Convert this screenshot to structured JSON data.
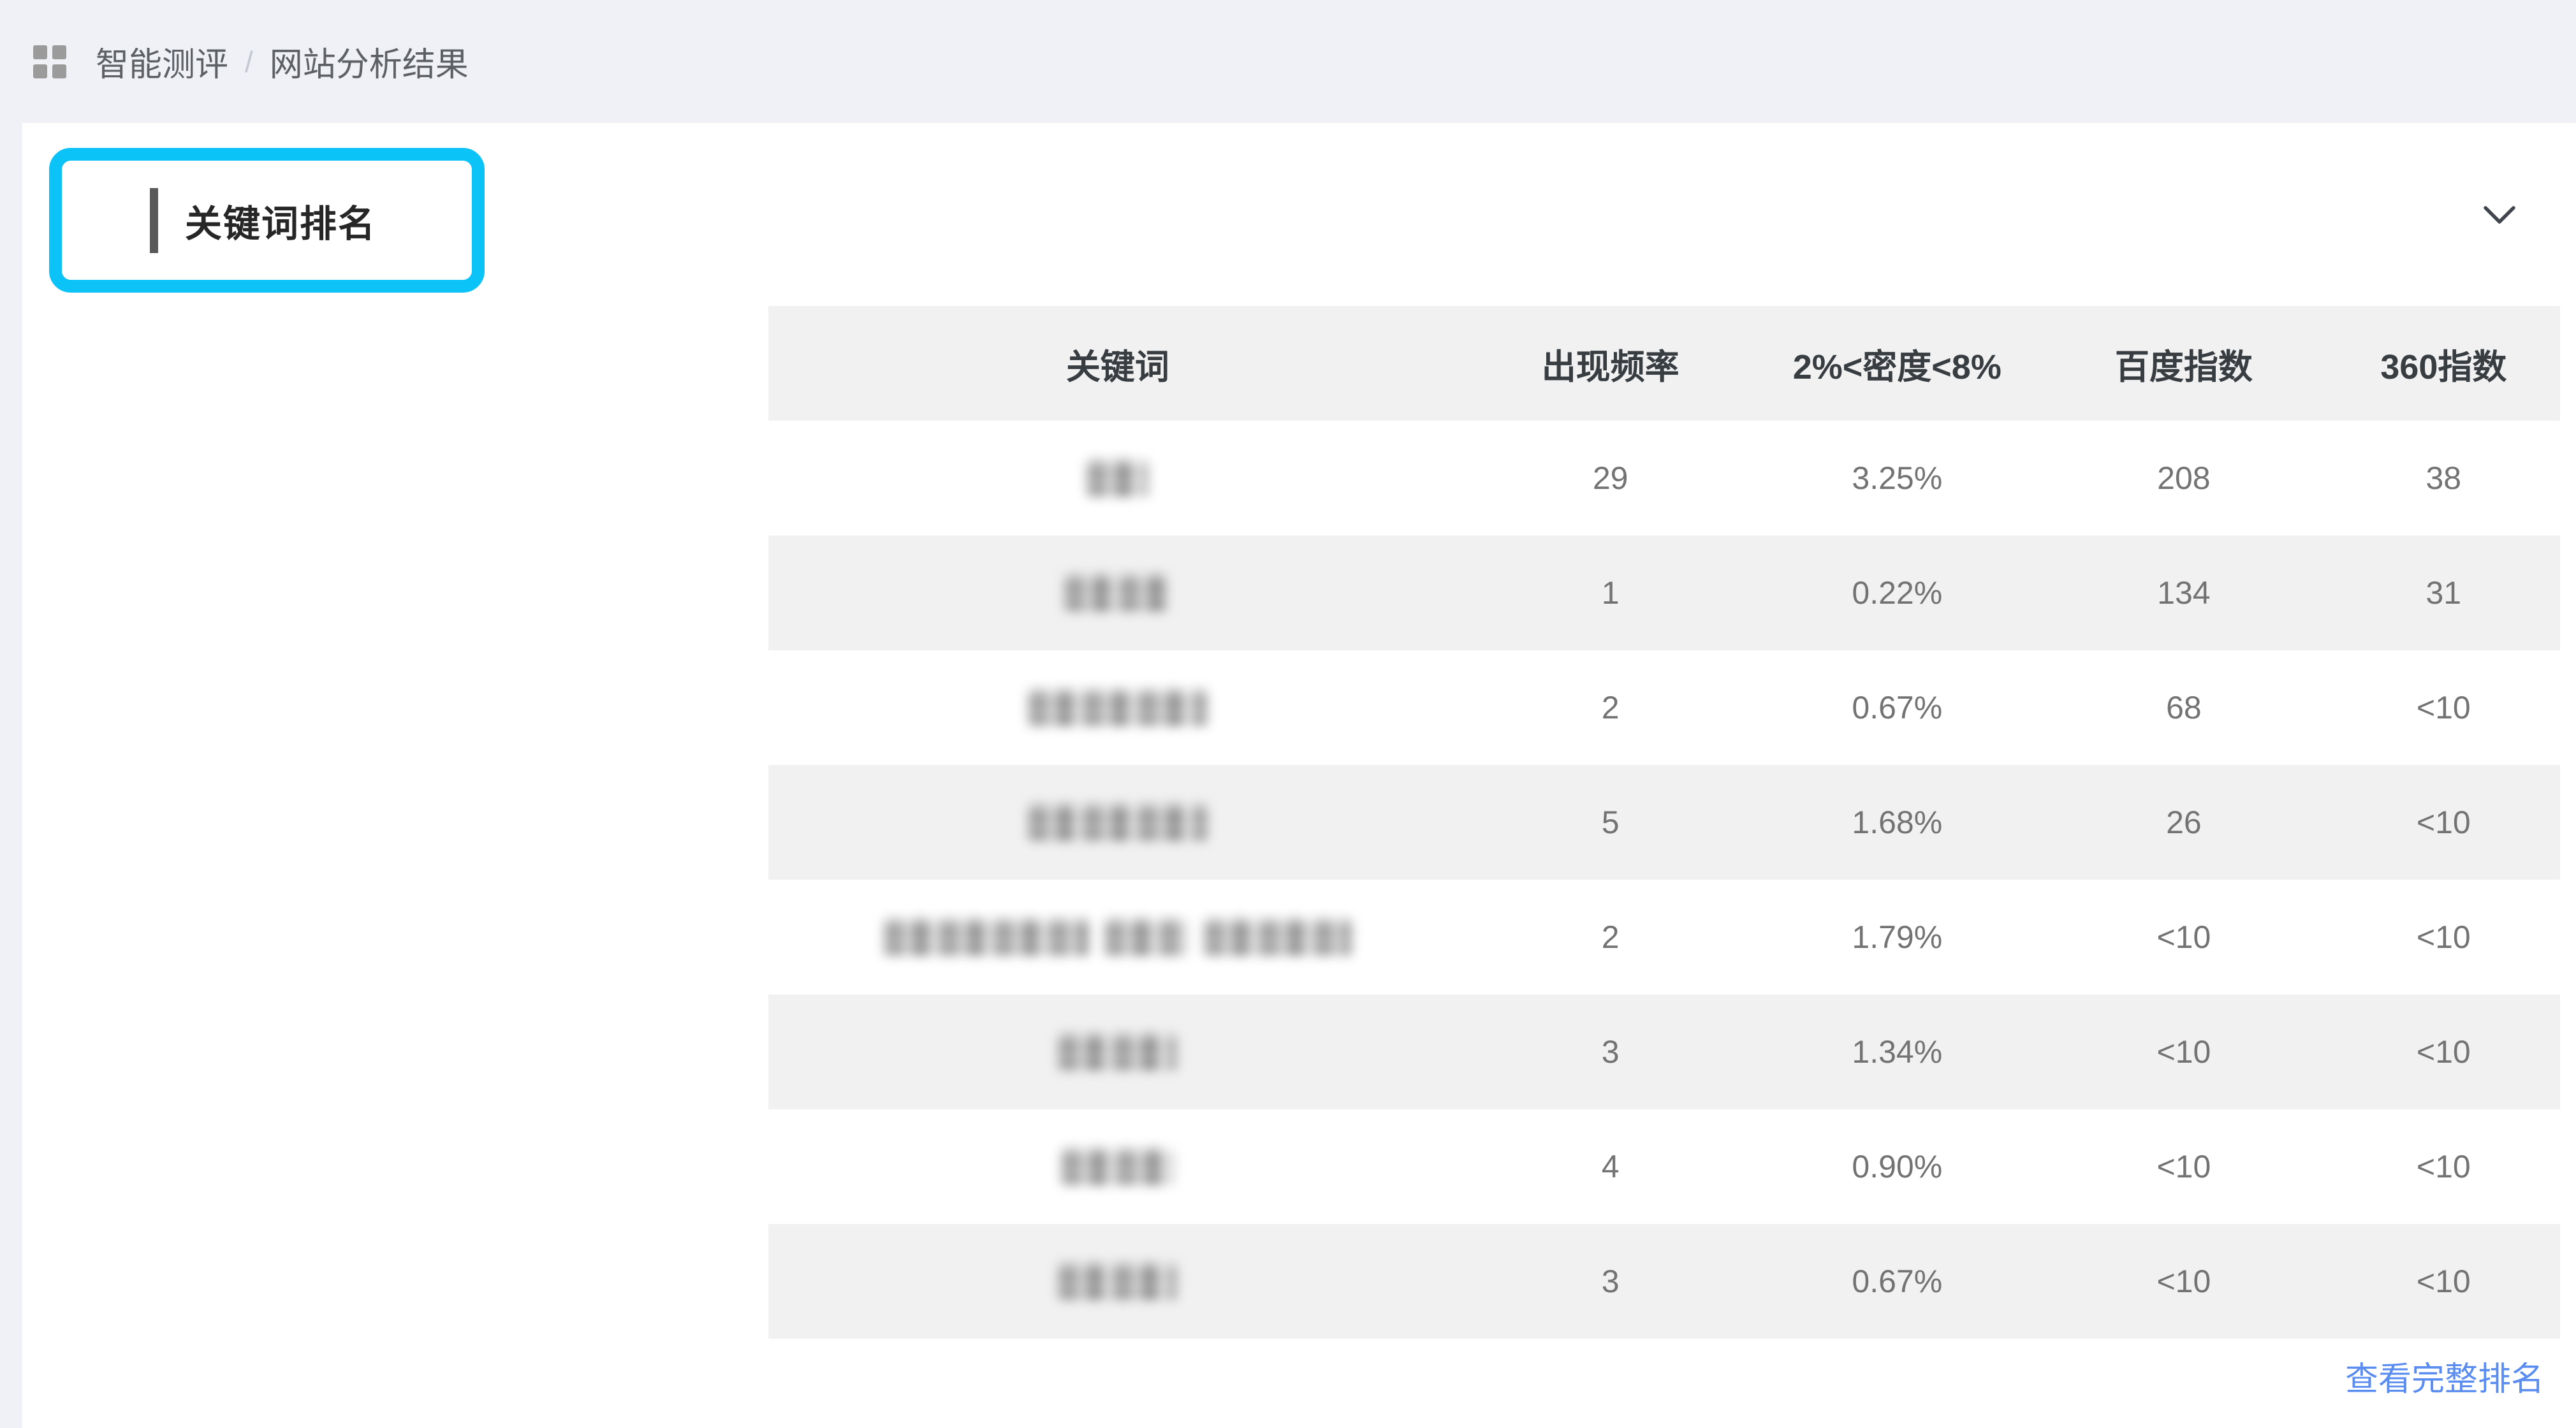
{
  "breadcrumb": {
    "items": [
      "智能测评",
      "网站分析结果"
    ],
    "separator": "/"
  },
  "section": {
    "title": "关键词排名",
    "highlight_color": "#0bc3f7"
  },
  "table": {
    "headers": [
      "关键词",
      "出现频率",
      "2%<密度<8%",
      "百度指数",
      "360指数"
    ],
    "rows": [
      {
        "keyword_redacted_segments": [
          95
        ],
        "frequency": "29",
        "density": "3.25%",
        "baidu_index": "208",
        "index_360": "38"
      },
      {
        "keyword_redacted_segments": [
          165
        ],
        "frequency": "1",
        "density": "0.22%",
        "baidu_index": "134",
        "index_360": "31"
      },
      {
        "keyword_redacted_segments": [
          280
        ],
        "frequency": "2",
        "density": "0.67%",
        "baidu_index": "68",
        "index_360": "<10"
      },
      {
        "keyword_redacted_segments": [
          280
        ],
        "frequency": "5",
        "density": "1.68%",
        "baidu_index": "26",
        "index_360": "<10"
      },
      {
        "keyword_redacted_segments": [
          320,
          130,
          230
        ],
        "frequency": "2",
        "density": "1.79%",
        "baidu_index": "<10",
        "index_360": "<10"
      },
      {
        "keyword_redacted_segments": [
          185
        ],
        "frequency": "3",
        "density": "1.34%",
        "baidu_index": "<10",
        "index_360": "<10"
      },
      {
        "keyword_redacted_segments": [
          175
        ],
        "frequency": "4",
        "density": "0.90%",
        "baidu_index": "<10",
        "index_360": "<10"
      },
      {
        "keyword_redacted_segments": [
          185
        ],
        "frequency": "3",
        "density": "0.67%",
        "baidu_index": "<10",
        "index_360": "<10"
      }
    ]
  },
  "footer": {
    "link_label": "查看完整排名"
  },
  "colors": {
    "topbar_bg": "#eff1f6",
    "card_bg": "#ffffff",
    "row_alt_bg": "#f1f1f1",
    "header_text": "#383d42",
    "cell_text": "#737373",
    "title_text": "#262626",
    "title_bar": "#595959",
    "breadcrumb_text": "#5d6166",
    "link_blue": "#5b8df0",
    "accent_cyan": "#0bc3f7",
    "icon_gray": "#9b9b9b"
  }
}
